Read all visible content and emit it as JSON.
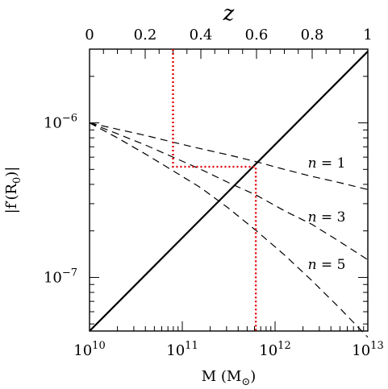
{
  "chart_data": {
    "type": "line",
    "x_scale": "log",
    "y_scale": "log",
    "xlabel": "M (M_sun)",
    "ylabel": "|f'(R0)|",
    "top_xlabel": "z",
    "xlim": [
      10000000000.0,
      10000000000000.0
    ],
    "ylim": [
      4.5e-08,
      3e-06
    ],
    "top_xlim": [
      0,
      1
    ],
    "grid": false,
    "x_tick_labels": {
      "t10": [
        "10",
        "10"
      ],
      "t11": [
        "10",
        "11"
      ],
      "t12": [
        "10",
        "12"
      ],
      "t13": [
        "10",
        "13"
      ]
    },
    "y_tick_labels": {
      "t6": [
        "10",
        "−6"
      ],
      "t7": [
        "10",
        "−7"
      ]
    },
    "top_tick_labels": [
      "0",
      "0.2",
      "0.4",
      "0.6",
      "0.8",
      "1"
    ],
    "series": [
      {
        "style": "solid",
        "color": "#000000",
        "points": [
          [
            10000000000.0,
            4.5e-08
          ],
          [
            10000000000000.0,
            2.9e-06
          ]
        ]
      },
      {
        "label_parts": [
          "n",
          " = 1"
        ],
        "style": "dashed",
        "color": "#000000",
        "z": [
          0,
          0.1,
          0.2,
          0.3,
          0.4,
          0.5,
          0.6,
          0.7,
          0.8,
          0.9,
          1.0
        ],
        "y": [
          1e-06,
          9.1e-07,
          8.3e-07,
          7.5e-07,
          6.8e-07,
          6.2e-07,
          5.6e-07,
          5e-07,
          4.5e-07,
          4.1e-07,
          3.7e-07
        ]
      },
      {
        "label_parts": [
          "n",
          " = 3"
        ],
        "style": "dashed",
        "color": "#000000",
        "z": [
          0,
          0.1,
          0.2,
          0.3,
          0.4,
          0.5,
          0.6,
          0.7,
          0.8,
          0.9,
          1.0
        ],
        "y": [
          1e-06,
          8.5e-07,
          7.2e-07,
          6e-07,
          5e-07,
          4.1e-07,
          3.4e-07,
          2.7e-07,
          2.2e-07,
          1.7e-07,
          1.3e-07
        ]
      },
      {
        "label_parts": [
          "n",
          " = 5"
        ],
        "style": "dashed",
        "color": "#000000",
        "z": [
          0,
          0.1,
          0.2,
          0.3,
          0.4,
          0.5,
          0.6,
          0.7,
          0.8,
          0.9,
          1.0
        ],
        "y": [
          1e-06,
          8e-07,
          6.3e-07,
          4.9e-07,
          3.8e-07,
          2.8e-07,
          2e-07,
          1.4e-07,
          9.5e-08,
          6.3e-08,
          4.1e-08
        ]
      }
    ],
    "annotations": {
      "color": "#e00000",
      "path_a": [
        {
          "z": 0.3,
          "y": 3e-06
        },
        {
          "z": 0.3,
          "y": 5.2e-07
        },
        {
          "M": 620000000000.0,
          "y": 5.2e-07
        },
        {
          "M": 620000000000.0,
          "y": 4.5e-08
        }
      ]
    }
  }
}
